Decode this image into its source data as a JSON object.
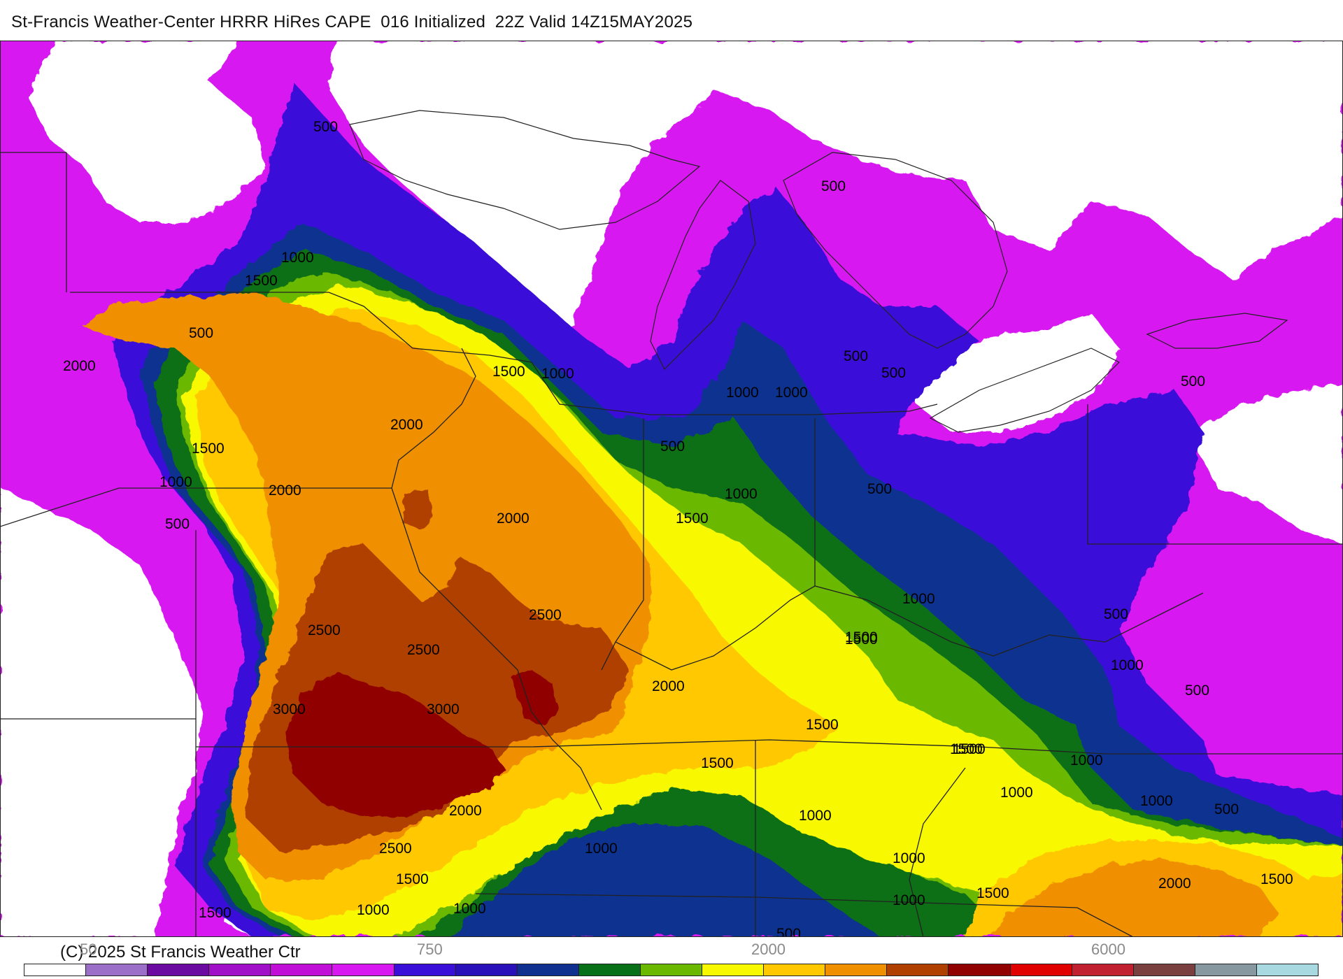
{
  "header": {
    "title": "St-Francis Weather-Center HRRR HiRes CAPE  016 Initialized  22Z Valid 14Z15MAY2025"
  },
  "footer": {
    "copyright": "(C) 2025 St Francis Weather Ctr"
  },
  "colorbar": {
    "tick_labels": [
      "50",
      "750",
      "2000",
      "6000"
    ],
    "colors": [
      "#ffffff",
      "#9b6fc8",
      "#6a0aa0",
      "#a010c8",
      "#c010d8",
      "#d818f0",
      "#3a10d8",
      "#2a10b8",
      "#103090",
      "#087018",
      "#6ab800",
      "#f8f800",
      "#ffc800",
      "#f09000",
      "#b04000",
      "#900000",
      "#e00000",
      "#c02030",
      "#7a4040",
      "#8898a0",
      "#a8d8e0"
    ]
  },
  "map": {
    "colors": {
      "missing": "#ffffff",
      "cape_250": "#d818f0",
      "cape_500": "#3a10d8",
      "cape_750": "#103090",
      "cape_1000": "#087018",
      "cape_1250": "#6ab800",
      "cape_1500": "#f8f800",
      "cape_1750": "#ffc800",
      "cape_2000": "#f09000",
      "cape_2500": "#b04000",
      "cape_3000": "#900000",
      "border": "#222222"
    },
    "contour_labels": [
      "500",
      "1000",
      "1500",
      "500",
      "2000",
      "1500",
      "1000",
      "1500",
      "1000",
      "2000",
      "500",
      "2000",
      "2000",
      "1500",
      "500",
      "1000",
      "1500",
      "1000",
      "500",
      "500",
      "500",
      "1000",
      "500",
      "500",
      "1000",
      "1500",
      "2500",
      "2500",
      "2500",
      "3000",
      "3000",
      "2000",
      "1500",
      "1500",
      "1500",
      "1000",
      "500",
      "1000",
      "500",
      "1000",
      "1000",
      "2000",
      "1000",
      "1000",
      "2500",
      "1500",
      "1000",
      "1000",
      "1500",
      "1000",
      "500",
      "2000",
      "1500",
      "2000",
      "1500",
      "1500",
      "500",
      "1000"
    ]
  }
}
